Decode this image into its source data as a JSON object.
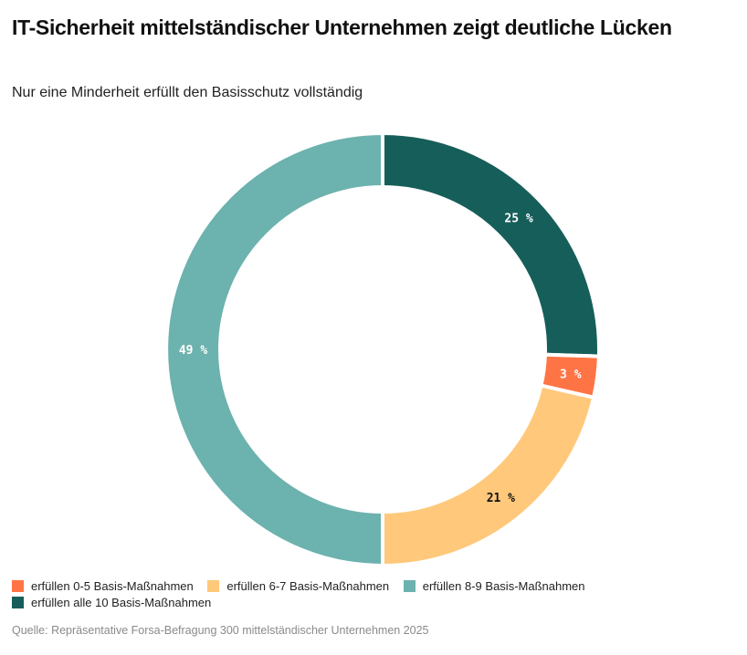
{
  "header": {
    "title": "IT-Sicherheit mittelständischer Unternehmen zeigt deutliche Lücken",
    "subtitle": "Nur eine Minderheit erfüllt den Basisschutz vollständig"
  },
  "footer": {
    "source": "Quelle: Repräsentative Forsa-Befragung 300 mittelständischer Unternehmen 2025"
  },
  "chart_data": {
    "type": "pie",
    "variant": "donut",
    "title": "IT-Sicherheit mittelständischer Unternehmen zeigt deutliche Lücken",
    "subtitle": "Nur eine Minderheit erfüllt den Basisschutz vollständig",
    "unit": "%",
    "start": "top",
    "direction": "clockwise",
    "legend_position": "bottom-left",
    "slices": [
      {
        "label": "erfüllen alle 10 Basis-Maßnahmen",
        "value": 25,
        "display": "25 %",
        "color": "#165e5a",
        "label_color": "#ffffff"
      },
      {
        "label": "erfüllen 0-5 Basis-Maßnahmen",
        "value": 3,
        "display": "3 %",
        "color": "#ff7445",
        "label_color": "#ffffff"
      },
      {
        "label": "erfüllen 6-7 Basis-Maßnahmen",
        "value": 21,
        "display": "21 %",
        "color": "#ffc87b",
        "label_color": "#111111"
      },
      {
        "label": "erfüllen 8-9 Basis-Maßnahmen",
        "value": 49,
        "display": "49 %",
        "color": "#6cb2ae",
        "label_color": "#ffffff"
      }
    ],
    "legend": [
      {
        "label": "erfüllen 0-5 Basis-Maßnahmen",
        "color": "#ff7445"
      },
      {
        "label": "erfüllen 6-7 Basis-Maßnahmen",
        "color": "#ffc87b"
      },
      {
        "label": "erfüllen 8-9 Basis-Maßnahmen",
        "color": "#6cb2ae"
      },
      {
        "label": "erfüllen alle 10 Basis-Maßnahmen",
        "color": "#165e5a"
      }
    ]
  }
}
